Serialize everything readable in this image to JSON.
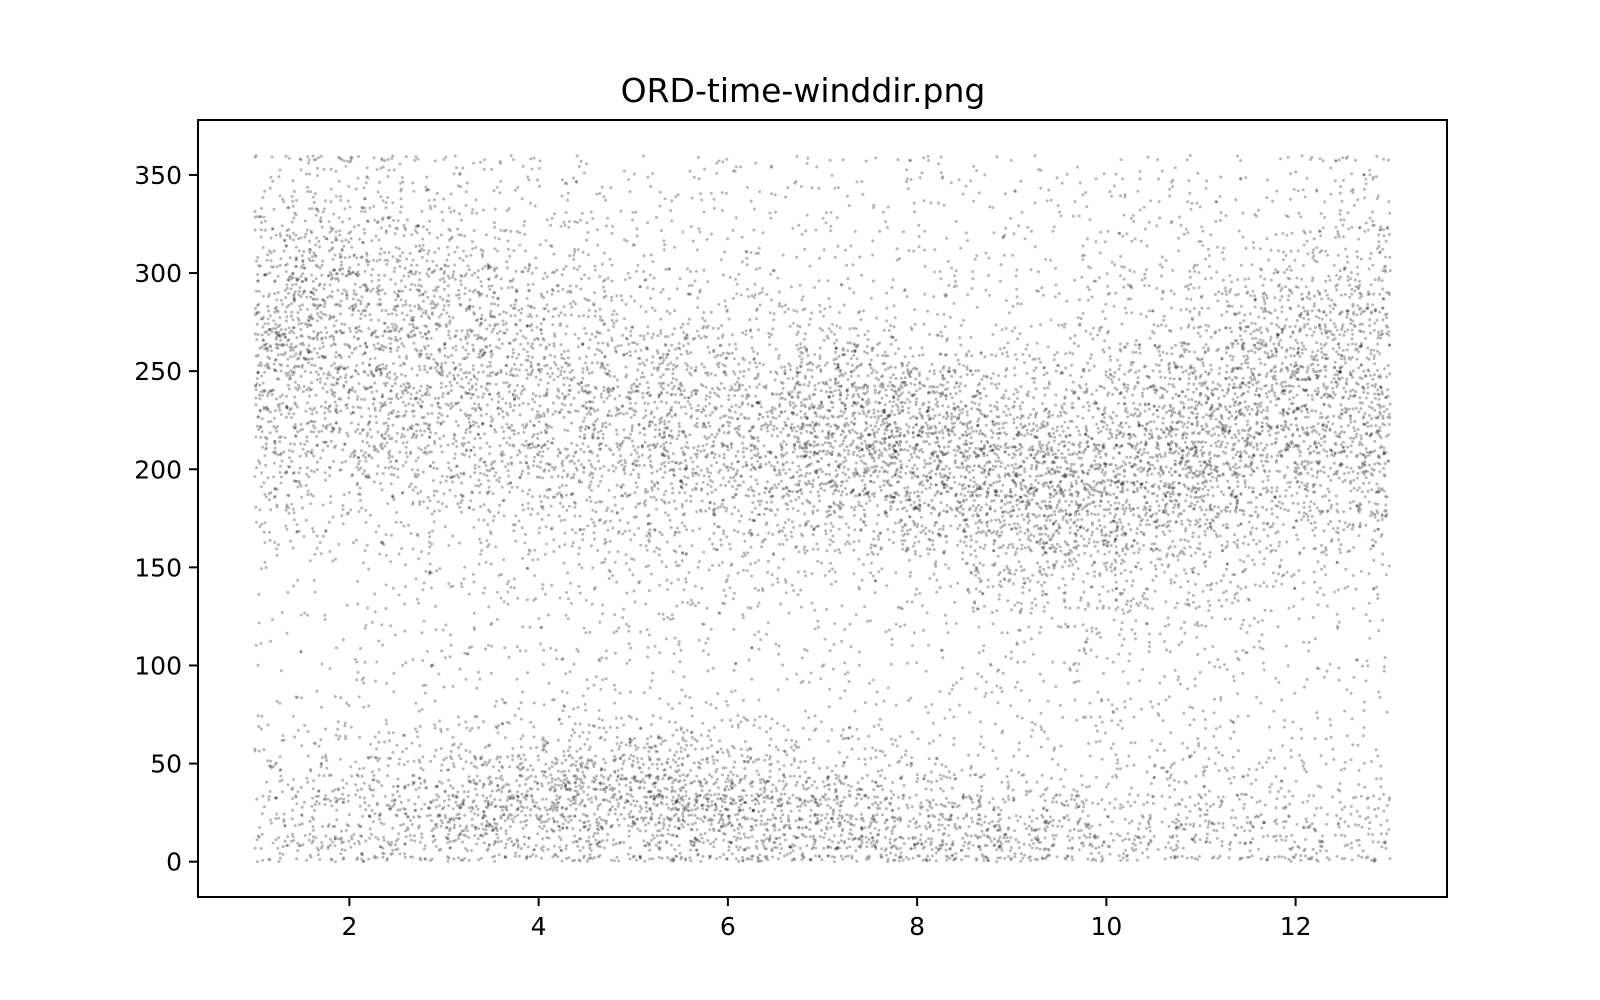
{
  "chart_data": {
    "type": "scatter",
    "title": "ORD-time-winddir.png",
    "xlabel": "",
    "ylabel": "",
    "xlim": [
      0.4,
      13.6
    ],
    "ylim": [
      -18,
      378
    ],
    "x_ticks": [
      2,
      4,
      6,
      8,
      10,
      12
    ],
    "y_ticks": [
      0,
      50,
      100,
      150,
      200,
      250,
      300,
      350
    ],
    "grid": false,
    "legend": "none",
    "marker_color": "#000000",
    "marker_alpha": 0.28,
    "x_range_of_points": [
      1.0,
      13.0
    ],
    "y_range_of_points": [
      0,
      360
    ],
    "density_profile": [
      {
        "x": 1.0,
        "upper_center": 255,
        "upper_spread": 45,
        "upper_weight": 0.72,
        "lower_center": 25,
        "lower_spread": 25,
        "lower_weight": 0.12
      },
      {
        "x": 2.0,
        "upper_center": 270,
        "upper_spread": 45,
        "upper_weight": 0.68,
        "lower_center": 22,
        "lower_spread": 22,
        "lower_weight": 0.14
      },
      {
        "x": 3.0,
        "upper_center": 255,
        "upper_spread": 45,
        "upper_weight": 0.55,
        "lower_center": 25,
        "lower_spread": 22,
        "lower_weight": 0.22
      },
      {
        "x": 4.0,
        "upper_center": 240,
        "upper_spread": 45,
        "upper_weight": 0.42,
        "lower_center": 30,
        "lower_spread": 20,
        "lower_weight": 0.32
      },
      {
        "x": 5.0,
        "upper_center": 225,
        "upper_spread": 40,
        "upper_weight": 0.38,
        "lower_center": 32,
        "lower_spread": 20,
        "lower_weight": 0.36
      },
      {
        "x": 6.0,
        "upper_center": 215,
        "upper_spread": 35,
        "upper_weight": 0.42,
        "lower_center": 30,
        "lower_spread": 20,
        "lower_weight": 0.32
      },
      {
        "x": 7.0,
        "upper_center": 220,
        "upper_spread": 30,
        "upper_weight": 0.5,
        "lower_center": 22,
        "lower_spread": 20,
        "lower_weight": 0.24
      },
      {
        "x": 8.0,
        "upper_center": 210,
        "upper_spread": 30,
        "upper_weight": 0.55,
        "lower_center": 18,
        "lower_spread": 18,
        "lower_weight": 0.2
      },
      {
        "x": 9.0,
        "upper_center": 195,
        "upper_spread": 30,
        "upper_weight": 0.58,
        "lower_center": 15,
        "lower_spread": 16,
        "lower_weight": 0.15
      },
      {
        "x": 10.0,
        "upper_center": 195,
        "upper_spread": 35,
        "upper_weight": 0.6,
        "lower_center": 15,
        "lower_spread": 16,
        "lower_weight": 0.1
      },
      {
        "x": 11.0,
        "upper_center": 215,
        "upper_spread": 40,
        "upper_weight": 0.62,
        "lower_center": 15,
        "lower_spread": 16,
        "lower_weight": 0.08
      },
      {
        "x": 12.0,
        "upper_center": 235,
        "upper_spread": 45,
        "upper_weight": 0.65,
        "lower_center": 15,
        "lower_spread": 16,
        "lower_weight": 0.08
      },
      {
        "x": 13.0,
        "upper_center": 250,
        "upper_spread": 45,
        "upper_weight": 0.68,
        "lower_center": 15,
        "lower_spread": 16,
        "lower_weight": 0.08
      }
    ],
    "approx_point_count": 16000
  }
}
